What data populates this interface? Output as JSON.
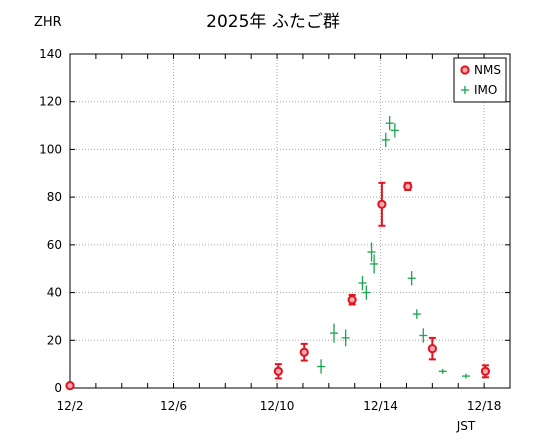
{
  "chart_data": {
    "type": "scatter",
    "title": "2025年 ふたご群",
    "ylabel": "ZHR",
    "xlabel": "JST",
    "xticks": [
      {
        "day": 2,
        "label": "12/2"
      },
      {
        "day": 6,
        "label": "12/6"
      },
      {
        "day": 10,
        "label": "12/10"
      },
      {
        "day": 14,
        "label": "12/14"
      },
      {
        "day": 18,
        "label": "12/18"
      }
    ],
    "xlim": [
      2,
      19
    ],
    "ylim": [
      0,
      140
    ],
    "yticks": [
      0,
      20,
      40,
      60,
      80,
      100,
      120,
      140
    ],
    "grid": true,
    "legend_position": "top-right",
    "series": [
      {
        "name": "NMS",
        "marker": "circle",
        "color": "#e0141e",
        "points": [
          {
            "x": 2.0,
            "y": 1,
            "err": 0
          },
          {
            "x": 10.05,
            "y": 7,
            "err": 3
          },
          {
            "x": 11.05,
            "y": 15,
            "err": 3.5
          },
          {
            "x": 12.9,
            "y": 37,
            "err": 2
          },
          {
            "x": 14.05,
            "y": 77,
            "err": 9
          },
          {
            "x": 15.05,
            "y": 84.5,
            "err": 1.5
          },
          {
            "x": 16.0,
            "y": 16.5,
            "err": 4.5
          },
          {
            "x": 18.05,
            "y": 7,
            "err": 2.5
          }
        ]
      },
      {
        "name": "IMO",
        "marker": "plus",
        "color": "#18a550",
        "points": [
          {
            "x": 11.7,
            "y": 9,
            "err": 3
          },
          {
            "x": 12.2,
            "y": 23,
            "err": 4
          },
          {
            "x": 12.65,
            "y": 21,
            "err": 3.5
          },
          {
            "x": 13.3,
            "y": 44,
            "err": 3
          },
          {
            "x": 13.45,
            "y": 40,
            "err": 3
          },
          {
            "x": 13.65,
            "y": 57,
            "err": 4
          },
          {
            "x": 13.75,
            "y": 52,
            "err": 4
          },
          {
            "x": 14.2,
            "y": 104,
            "err": 3
          },
          {
            "x": 14.35,
            "y": 111,
            "err": 3
          },
          {
            "x": 14.55,
            "y": 108,
            "err": 3
          },
          {
            "x": 15.2,
            "y": 46,
            "err": 3
          },
          {
            "x": 15.4,
            "y": 31,
            "err": 2
          },
          {
            "x": 15.65,
            "y": 22,
            "err": 3
          },
          {
            "x": 16.4,
            "y": 7,
            "err": 1
          },
          {
            "x": 17.3,
            "y": 5,
            "err": 1
          }
        ]
      }
    ]
  }
}
